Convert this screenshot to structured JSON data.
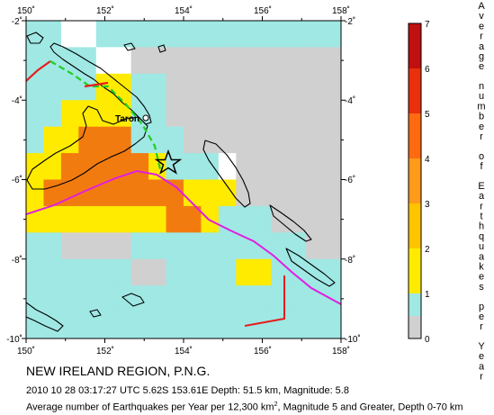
{
  "map": {
    "lon_ticks": [
      "150˚",
      "152˚",
      "154˚",
      "156˚",
      "158˚"
    ],
    "lat_ticks": [
      "-2˚",
      "-4˚",
      "-6˚",
      "-8˚",
      "-10˚"
    ],
    "place_label": "Taron",
    "grid_rows": [
      [
        "c",
        "c",
        "w",
        "w",
        "c",
        "c",
        "c",
        "c",
        "c",
        "c",
        "c",
        "c",
        "c",
        "c",
        "c",
        "c",
        "c",
        "c"
      ],
      [
        "c",
        "c",
        "c",
        "c",
        "w",
        "w",
        "g",
        "g",
        "g",
        "g",
        "g",
        "g",
        "g",
        "g",
        "g",
        "g",
        "g",
        "g"
      ],
      [
        "c",
        "c",
        "c",
        "c",
        "y",
        "y",
        "c",
        "c",
        "g",
        "g",
        "g",
        "g",
        "g",
        "g",
        "g",
        "g",
        "g",
        "g"
      ],
      [
        "c",
        "c",
        "y",
        "y",
        "y",
        "y",
        "c",
        "c",
        "g",
        "g",
        "g",
        "g",
        "g",
        "g",
        "g",
        "g",
        "g",
        "g"
      ],
      [
        "c",
        "y",
        "y",
        "o",
        "o",
        "o",
        "c",
        "c",
        "c",
        "g",
        "g",
        "g",
        "g",
        "g",
        "g",
        "g",
        "g",
        "g"
      ],
      [
        "y",
        "y",
        "o",
        "o",
        "o",
        "o",
        "o",
        "y",
        "c",
        "c",
        "c",
        "w",
        "g",
        "g",
        "g",
        "g",
        "g",
        "g"
      ],
      [
        "y",
        "o",
        "o",
        "o",
        "o",
        "o",
        "o",
        "o",
        "o",
        "y",
        "y",
        "y",
        "g",
        "g",
        "g",
        "g",
        "g",
        "g"
      ],
      [
        "y",
        "y",
        "y",
        "y",
        "y",
        "y",
        "y",
        "y",
        "o",
        "o",
        "y",
        "c",
        "c",
        "c",
        "g",
        "g",
        "g",
        "g"
      ],
      [
        "c",
        "c",
        "g",
        "g",
        "g",
        "g",
        "c",
        "c",
        "c",
        "c",
        "c",
        "c",
        "c",
        "c",
        "c",
        "c",
        "g",
        "g"
      ],
      [
        "c",
        "c",
        "c",
        "c",
        "c",
        "c",
        "g",
        "g",
        "c",
        "c",
        "c",
        "c",
        "y",
        "y",
        "c",
        "c",
        "c",
        "c"
      ],
      [
        "c",
        "c",
        "c",
        "c",
        "c",
        "c",
        "c",
        "c",
        "c",
        "c",
        "c",
        "c",
        "c",
        "c",
        "c",
        "c",
        "c",
        "c"
      ],
      [
        "c",
        "c",
        "c",
        "c",
        "c",
        "c",
        "c",
        "c",
        "c",
        "c",
        "c",
        "c",
        "c",
        "c",
        "c",
        "c",
        "c",
        "c"
      ]
    ],
    "colors": {
      "cyan": "#9fe8e4",
      "white": "#ffffff",
      "gray": "#d0d0d0",
      "yellow": "#ffeb00",
      "light_orange": "#ffc400",
      "orange": "#ff9a1a",
      "dark_orange": "#f27b10",
      "trench_red": "#e81c1c",
      "ridge_green": "#22cc22",
      "contour_magenta": "#e01ee0"
    }
  },
  "legend": {
    "ticks": [
      "0",
      "1",
      "2",
      "3",
      "4",
      "5",
      "6",
      "7"
    ],
    "title_words": [
      "Average",
      "number",
      "of",
      "Earthquakes",
      "per",
      "Year"
    ]
  },
  "caption": {
    "region": "NEW IRELAND REGION, P.N.G.",
    "event": "2010 10 28 03:17:27 UTC 5.62S 153.61E Depth: 51.5 km, Magnitude: 5.8",
    "avg_prefix": "Average number of Earthquakes per Year per 12,300 km",
    "avg_sup": "2",
    "avg_suffix": ", Magnitude 5 and Greater, Depth 0-70 km"
  }
}
